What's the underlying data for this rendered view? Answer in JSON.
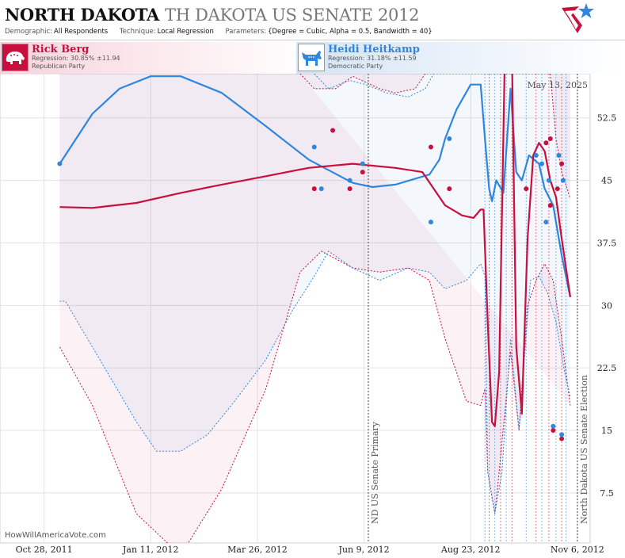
{
  "header": {
    "title_main": "NORTH DAKOTA",
    "title_sub": "TH DAKOTA US SENATE 2012",
    "demographic_label": "Demographic:",
    "demographic_value": "All Respondents",
    "technique_label": "Technique:",
    "technique_value": "Local Regression",
    "parameters_label": "Parameters:",
    "parameters_value": "{Degree = Cubic, Alpha = 0.5, Bandwidth = 40}"
  },
  "candidates": {
    "rep": {
      "name": "Rick Berg",
      "regression": "Regression: 30.85% ±11.94",
      "party": "Republican Party",
      "color": "#c8103e"
    },
    "dem": {
      "name": "Heidi Heitkamp",
      "regression": "Regression: 31.18% ±11.59",
      "party": "Democratic Party",
      "color": "#2f86de"
    }
  },
  "date_stamp": "May 13, 2025",
  "credit": "HowWillAmericaVote.com",
  "chart_data": {
    "type": "line",
    "x_axis": {
      "tick_labels": [
        "Oct 28, 2011",
        "Jan 11, 2012",
        "Mar 26, 2012",
        "Jun 9, 2012",
        "Aug 23, 2012",
        "Nov 6, 2012"
      ],
      "tick_dates": [
        "2011-10-28",
        "2012-01-11",
        "2012-03-26",
        "2012-06-09",
        "2012-08-23",
        "2012-11-06"
      ],
      "range": [
        "2011-09-27",
        "2012-11-15"
      ]
    },
    "y_axis": {
      "tick_labels": [
        "7.5",
        "15",
        "22.5",
        "30",
        "37.5",
        "45",
        "52.5"
      ],
      "ticks": [
        7.5,
        15,
        22.5,
        30,
        37.5,
        45,
        52.5
      ],
      "range": [
        1.5,
        57.8
      ]
    },
    "grid": true,
    "annotations": [
      {
        "label": "ND US Senate Primary",
        "date": "2012-06-12"
      },
      {
        "label": "North Dakota US Senate Election",
        "date": "2012-11-06"
      }
    ],
    "poll_date_lines": [
      "2012-09-02",
      "2012-09-05",
      "2012-09-09",
      "2012-09-13",
      "2012-09-17",
      "2012-09-21",
      "2012-10-01",
      "2012-10-08",
      "2012-10-12",
      "2012-10-17",
      "2012-10-22",
      "2012-10-26",
      "2012-10-29"
    ],
    "series": [
      {
        "name": "Rick Berg",
        "color": "#c8103e",
        "line": [
          [
            "2011-11-08",
            41.8
          ],
          [
            "2011-12-01",
            41.7
          ],
          [
            "2012-01-01",
            42.3
          ],
          [
            "2012-02-01",
            43.5
          ],
          [
            "2012-03-01",
            44.5
          ],
          [
            "2012-04-01",
            45.5
          ],
          [
            "2012-05-01",
            46.5
          ],
          [
            "2012-06-01",
            47.0
          ],
          [
            "2012-07-01",
            46.5
          ],
          [
            "2012-07-20",
            46.0
          ],
          [
            "2012-08-05",
            42.0
          ],
          [
            "2012-08-17",
            40.8
          ],
          [
            "2012-08-25",
            40.5
          ],
          [
            "2012-08-30",
            41.5
          ],
          [
            "2012-09-01",
            41.5
          ],
          [
            "2012-09-04",
            28.0
          ],
          [
            "2012-09-07",
            16.0
          ],
          [
            "2012-09-09",
            15.5
          ],
          [
            "2012-09-12",
            22.0
          ],
          [
            "2012-09-16",
            60.0
          ],
          [
            "2012-09-21",
            60.0
          ],
          [
            "2012-09-24",
            25.0
          ],
          [
            "2012-09-28",
            17.0
          ],
          [
            "2012-10-02",
            38.0
          ],
          [
            "2012-10-06",
            48.0
          ],
          [
            "2012-10-10",
            49.5
          ],
          [
            "2012-10-14",
            48.5
          ],
          [
            "2012-10-18",
            45.0
          ],
          [
            "2012-10-22",
            43.0
          ],
          [
            "2012-10-26",
            38.0
          ],
          [
            "2012-11-01",
            31.0
          ]
        ],
        "upper": [
          [
            "2012-04-25",
            57.8
          ],
          [
            "2012-05-05",
            56.0
          ],
          [
            "2012-05-20",
            56.0
          ],
          [
            "2012-06-01",
            57.5
          ],
          [
            "2012-06-20",
            56.0
          ],
          [
            "2012-07-01",
            55.5
          ],
          [
            "2012-07-15",
            56.0
          ],
          [
            "2012-07-22",
            57.8
          ],
          [
            "2012-10-18",
            57.8
          ],
          [
            "2012-10-22",
            50.0
          ],
          [
            "2012-10-26",
            46.0
          ],
          [
            "2012-11-01",
            42.8
          ]
        ],
        "lower": [
          [
            "2011-11-08",
            25.0
          ],
          [
            "2011-12-01",
            18.0
          ],
          [
            "2012-01-01",
            5.0
          ],
          [
            "2012-02-01",
            0.0
          ],
          [
            "2012-03-01",
            8.0
          ],
          [
            "2012-04-01",
            20.0
          ],
          [
            "2012-04-25",
            34.0
          ],
          [
            "2012-05-10",
            36.5
          ],
          [
            "2012-06-01",
            34.5
          ],
          [
            "2012-06-20",
            34.0
          ],
          [
            "2012-07-10",
            34.5
          ],
          [
            "2012-07-25",
            33.0
          ],
          [
            "2012-08-05",
            26.0
          ],
          [
            "2012-08-20",
            18.5
          ],
          [
            "2012-08-30",
            18.0
          ],
          [
            "2012-09-02",
            20.0
          ],
          [
            "2012-09-04",
            10.0
          ],
          [
            "2012-09-09",
            5.0
          ],
          [
            "2012-09-12",
            10.0
          ],
          [
            "2012-09-20",
            24.5
          ],
          [
            "2012-09-26",
            15.0
          ],
          [
            "2012-10-02",
            30.0
          ],
          [
            "2012-10-08",
            33.0
          ],
          [
            "2012-10-14",
            35.0
          ],
          [
            "2012-10-20",
            33.0
          ],
          [
            "2012-10-26",
            26.0
          ],
          [
            "2012-11-01",
            18.0
          ]
        ],
        "polls": [
          [
            "2012-05-05",
            44.0
          ],
          [
            "2012-05-18",
            51.0
          ],
          [
            "2012-05-30",
            44.0
          ],
          [
            "2012-06-08",
            46.0
          ],
          [
            "2012-07-26",
            49.0
          ],
          [
            "2012-08-08",
            44.0
          ],
          [
            "2012-10-01",
            44.0
          ],
          [
            "2012-10-15",
            49.5
          ],
          [
            "2012-10-18",
            50.0
          ],
          [
            "2012-10-18",
            42.0
          ],
          [
            "2012-10-23",
            44.0
          ],
          [
            "2012-10-26",
            47.0
          ],
          [
            "2012-10-20",
            15.0
          ],
          [
            "2012-10-26",
            14.0
          ]
        ]
      },
      {
        "name": "Heidi Heitkamp",
        "color": "#2f86de",
        "line": [
          [
            "2011-11-08",
            47.0
          ],
          [
            "2011-12-01",
            53.0
          ],
          [
            "2011-12-20",
            56.0
          ],
          [
            "2012-01-11",
            57.5
          ],
          [
            "2012-02-01",
            57.5
          ],
          [
            "2012-03-01",
            55.5
          ],
          [
            "2012-04-01",
            51.5
          ],
          [
            "2012-05-01",
            47.5
          ],
          [
            "2012-06-01",
            44.7
          ],
          [
            "2012-06-15",
            44.2
          ],
          [
            "2012-07-01",
            44.5
          ],
          [
            "2012-07-25",
            45.7
          ],
          [
            "2012-08-01",
            47.5
          ],
          [
            "2012-08-05",
            50.0
          ],
          [
            "2012-08-13",
            53.5
          ],
          [
            "2012-08-23",
            56.5
          ],
          [
            "2012-08-30",
            56.5
          ],
          [
            "2012-09-02",
            50.0
          ],
          [
            "2012-09-05",
            44.0
          ],
          [
            "2012-09-07",
            42.5
          ],
          [
            "2012-09-10",
            45.0
          ],
          [
            "2012-09-15",
            43.5
          ],
          [
            "2012-09-20",
            56.0
          ],
          [
            "2012-09-24",
            46.0
          ],
          [
            "2012-09-28",
            45.0
          ],
          [
            "2012-10-03",
            48.0
          ],
          [
            "2012-10-10",
            47.0
          ],
          [
            "2012-10-14",
            44.0
          ],
          [
            "2012-10-20",
            42.0
          ],
          [
            "2012-10-26",
            36.0
          ],
          [
            "2012-11-01",
            31.0
          ]
        ],
        "upper": [
          [
            "2012-05-05",
            57.8
          ],
          [
            "2012-05-15",
            56.0
          ],
          [
            "2012-05-30",
            57.0
          ],
          [
            "2012-06-10",
            56.5
          ],
          [
            "2012-06-25",
            55.5
          ],
          [
            "2012-07-10",
            55.0
          ],
          [
            "2012-07-22",
            56.0
          ],
          [
            "2012-07-28",
            57.8
          ]
        ],
        "lower": [
          [
            "2011-11-08",
            30.5
          ],
          [
            "2011-11-12",
            30.5
          ],
          [
            "2011-12-01",
            25.0
          ],
          [
            "2012-01-01",
            16.0
          ],
          [
            "2012-01-15",
            12.5
          ],
          [
            "2012-02-01",
            12.5
          ],
          [
            "2012-02-20",
            14.5
          ],
          [
            "2012-03-10",
            18.5
          ],
          [
            "2012-04-01",
            23.5
          ],
          [
            "2012-04-20",
            29.5
          ],
          [
            "2012-05-05",
            33.5
          ],
          [
            "2012-05-15",
            36.5
          ],
          [
            "2012-06-01",
            34.5
          ],
          [
            "2012-06-20",
            33.0
          ],
          [
            "2012-07-10",
            34.5
          ],
          [
            "2012-07-25",
            34.0
          ],
          [
            "2012-08-05",
            32.0
          ],
          [
            "2012-08-20",
            33.0
          ],
          [
            "2012-08-30",
            35.0
          ],
          [
            "2012-09-02",
            33.5
          ],
          [
            "2012-09-04",
            10.0
          ],
          [
            "2012-09-09",
            5.0
          ],
          [
            "2012-09-14",
            10.0
          ],
          [
            "2012-09-20",
            26.0
          ],
          [
            "2012-09-26",
            15.0
          ],
          [
            "2012-10-04",
            33.0
          ],
          [
            "2012-10-10",
            33.5
          ],
          [
            "2012-10-16",
            31.5
          ],
          [
            "2012-10-22",
            28.0
          ],
          [
            "2012-10-28",
            22.0
          ],
          [
            "2012-11-01",
            19.0
          ]
        ],
        "polls": [
          [
            "2011-11-08",
            47.0
          ],
          [
            "2012-05-05",
            49.0
          ],
          [
            "2012-05-10",
            44.0
          ],
          [
            "2012-05-30",
            45.0
          ],
          [
            "2012-06-08",
            47.0
          ],
          [
            "2012-07-26",
            40.0
          ],
          [
            "2012-08-08",
            50.0
          ],
          [
            "2012-10-08",
            48.0
          ],
          [
            "2012-10-12",
            47.0
          ],
          [
            "2012-10-15",
            40.0
          ],
          [
            "2012-10-17",
            45.0
          ],
          [
            "2012-10-24",
            48.0
          ],
          [
            "2012-10-27",
            45.0
          ],
          [
            "2012-10-20",
            15.5
          ],
          [
            "2012-10-26",
            14.5
          ]
        ]
      }
    ]
  }
}
